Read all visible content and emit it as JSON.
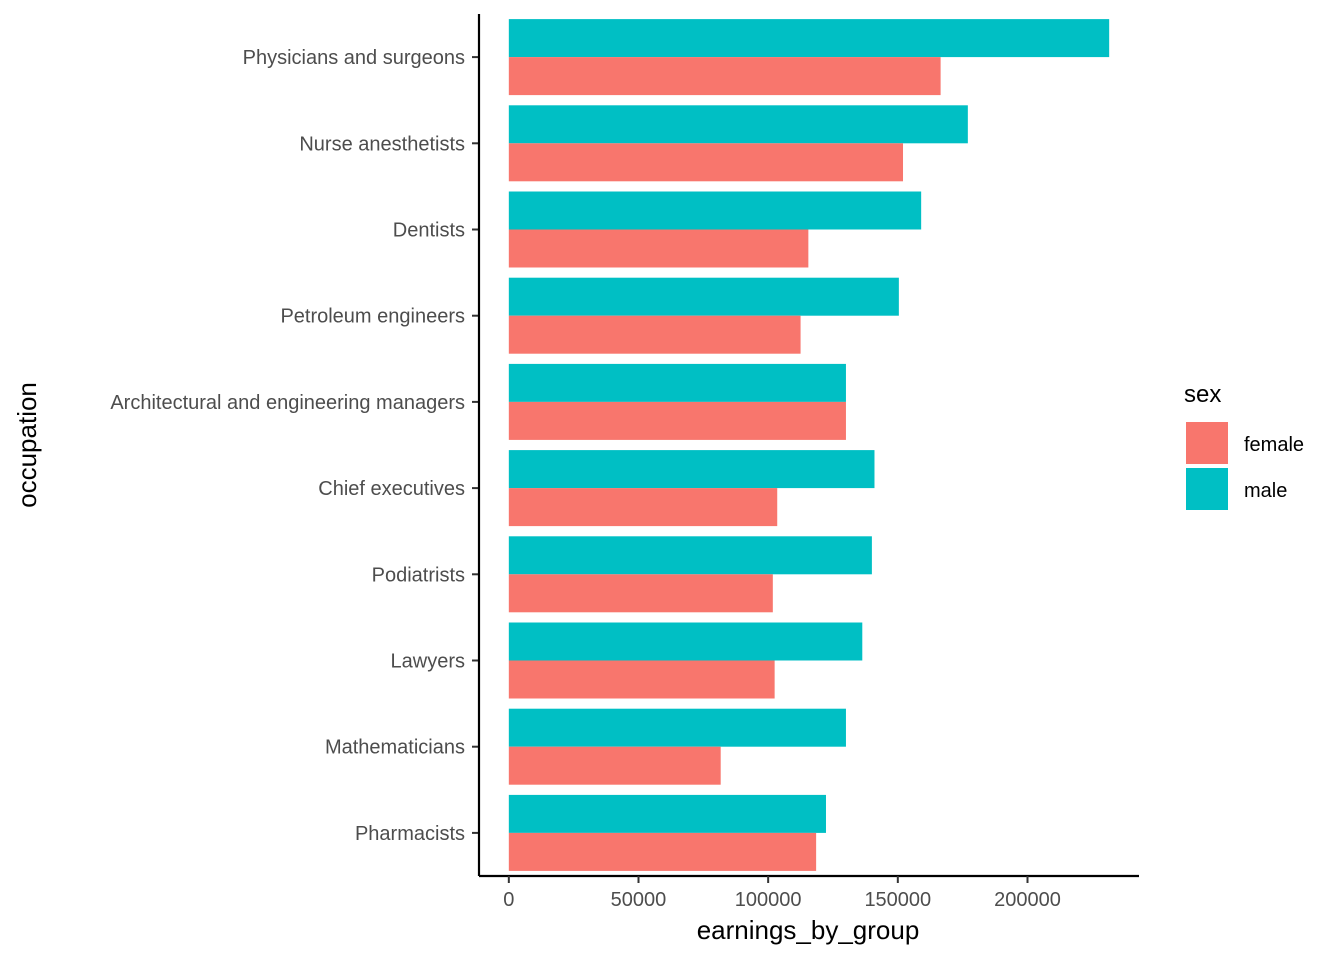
{
  "chart_data": {
    "type": "bar",
    "orientation": "horizontal",
    "xlabel": "earnings_by_group",
    "ylabel": "occupation",
    "xlim": [
      -11500,
      243000
    ],
    "x_ticks": [
      0,
      50000,
      100000,
      150000,
      200000
    ],
    "x_tick_labels": [
      "0",
      "50000",
      "100000",
      "150000",
      "200000"
    ],
    "grid": false,
    "legend": {
      "title": "sex",
      "placement": "right"
    },
    "categories": [
      "Physicians and surgeons",
      "Nurse anesthetists",
      "Dentists",
      "Petroleum engineers",
      "Architectural and engineering managers",
      "Chief executives",
      "Podiatrists",
      "Lawyers",
      "Mathematicians",
      "Pharmacists"
    ],
    "series": [
      {
        "name": "female",
        "color": "#F8766D",
        "values": [
          166500,
          152000,
          115500,
          112500,
          130000,
          103500,
          101800,
          102500,
          81700,
          118500
        ]
      },
      {
        "name": "male",
        "color": "#00BFC4",
        "values": [
          231500,
          177000,
          159000,
          150400,
          130000,
          141000,
          140000,
          136300,
          130000,
          122300
        ]
      }
    ]
  }
}
